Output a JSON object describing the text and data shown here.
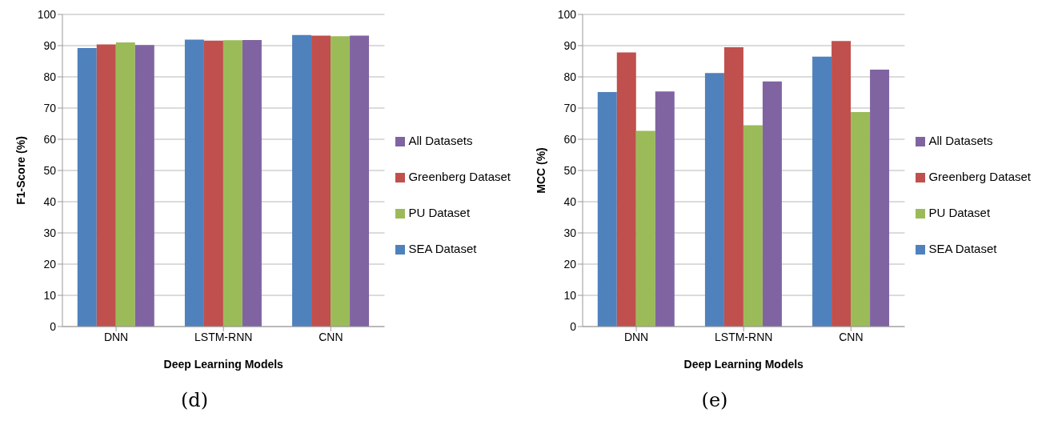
{
  "chart_data": [
    {
      "type": "bar",
      "title": "(d)",
      "xlabel": "Deep Learning Models",
      "ylabel": "F1-Score (%)",
      "categories": [
        "DNN",
        "LSTM-RNN",
        "CNN"
      ],
      "series": [
        {
          "name": "SEA Dataset",
          "color": "#4f81bd",
          "values": [
            89.2,
            91.9,
            93.4
          ]
        },
        {
          "name": "Greenberg Dataset",
          "color": "#c0504d",
          "values": [
            90.4,
            91.6,
            93.2
          ]
        },
        {
          "name": "PU Dataset",
          "color": "#9bbb59",
          "values": [
            91.0,
            91.7,
            93.0
          ]
        },
        {
          "name": "All Datasets",
          "color": "#8064a2",
          "values": [
            90.2,
            91.8,
            93.2
          ]
        }
      ],
      "ylim": [
        0,
        100
      ],
      "yticks": [
        0,
        10,
        20,
        30,
        40,
        50,
        60,
        70,
        80,
        90,
        100
      ],
      "grid": "y",
      "legend": "right"
    },
    {
      "type": "bar",
      "title": "(e)",
      "xlabel": "Deep Learning Models",
      "ylabel": "MCC (%)",
      "categories": [
        "DNN",
        "LSTM-RNN",
        "CNN"
      ],
      "series": [
        {
          "name": "SEA Dataset",
          "color": "#4f81bd",
          "values": [
            75.1,
            81.2,
            86.5
          ]
        },
        {
          "name": "Greenberg Dataset",
          "color": "#c0504d",
          "values": [
            87.8,
            89.5,
            91.5
          ]
        },
        {
          "name": "PU Dataset",
          "color": "#9bbb59",
          "values": [
            62.7,
            64.5,
            68.7
          ]
        },
        {
          "name": "All Datasets",
          "color": "#8064a2",
          "values": [
            75.3,
            78.5,
            82.3
          ]
        }
      ],
      "ylim": [
        0,
        100
      ],
      "yticks": [
        0,
        10,
        20,
        30,
        40,
        50,
        60,
        70,
        80,
        90,
        100
      ],
      "grid": "y",
      "legend": "right"
    }
  ]
}
